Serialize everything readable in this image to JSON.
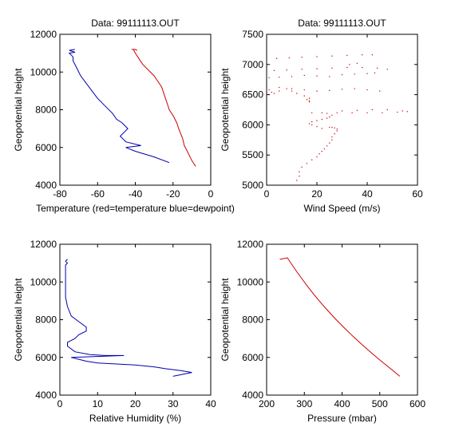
{
  "colors": {
    "temperature": "#cc0000",
    "dewpoint": "#0000aa",
    "axes": "#000000",
    "background": "#ffffff"
  },
  "chart_data": [
    {
      "type": "line",
      "title": "Data: 99111113.OUT",
      "xlabel": "Temperature (red=temperature blue=dewpoint)",
      "ylabel": "Geopotential height",
      "xlim": [
        -80,
        0
      ],
      "ylim": [
        4000,
        12000
      ],
      "xticks": [
        -80,
        -60,
        -40,
        -20,
        0
      ],
      "yticks": [
        4000,
        6000,
        8000,
        10000,
        12000
      ],
      "grid": false,
      "series": [
        {
          "color": "#cc0000",
          "style": "line",
          "x": [
            -8,
            -10,
            -12,
            -14,
            -15,
            -17,
            -18,
            -20,
            -22,
            -23,
            -24,
            -25,
            -26,
            -28,
            -30,
            -33,
            -36,
            -38,
            -40,
            -41,
            -42,
            -40,
            -39
          ],
          "y": [
            5000,
            5300,
            5700,
            6100,
            6500,
            7000,
            7300,
            7700,
            8000,
            8300,
            8600,
            8900,
            9200,
            9500,
            9800,
            10100,
            10400,
            10700,
            11000,
            11200,
            11200,
            11200,
            11150
          ]
        },
        {
          "color": "#0000aa",
          "style": "line",
          "x": [
            -22,
            -30,
            -40,
            -45,
            -37,
            -45,
            -48,
            -44,
            -47,
            -50,
            -52,
            -56,
            -60,
            -63,
            -66,
            -69,
            -71,
            -73,
            -73,
            -75,
            -72,
            -75,
            -72
          ],
          "y": [
            5200,
            5500,
            5800,
            6000,
            6100,
            6300,
            6600,
            7000,
            7300,
            7500,
            7800,
            8200,
            8600,
            9000,
            9400,
            9800,
            10200,
            10600,
            10800,
            11000,
            11050,
            11150,
            11200
          ]
        }
      ]
    },
    {
      "type": "scatter",
      "title": "Data: 99111113.OUT",
      "xlabel": "Wind Speed (m/s)",
      "ylabel": "Geopotential height",
      "xlim": [
        0,
        60
      ],
      "ylim": [
        5000,
        7500
      ],
      "xticks": [
        0,
        20,
        40,
        60
      ],
      "yticks": [
        5000,
        5500,
        6000,
        6500,
        7000,
        7500
      ],
      "grid": false,
      "series": [
        {
          "color": "#cc0000",
          "style": "points",
          "x": [
            12,
            12,
            13,
            13,
            14,
            16,
            18,
            20,
            21,
            22,
            23,
            24,
            25,
            26,
            26,
            27,
            28,
            28,
            27,
            26,
            25,
            22,
            20,
            18,
            17,
            18,
            20,
            22,
            24,
            25,
            26,
            24,
            30,
            36,
            42,
            48,
            54,
            56,
            52,
            46,
            40,
            34,
            28,
            22,
            18,
            17,
            16,
            17,
            17,
            15,
            12,
            10,
            8,
            5,
            3,
            2,
            1,
            5,
            10,
            15,
            20,
            25,
            30,
            35,
            40,
            45,
            1,
            5,
            10,
            15,
            20,
            25,
            30,
            35,
            40,
            43,
            3,
            8,
            14,
            20,
            26,
            32,
            38,
            44,
            48,
            4,
            9,
            14,
            20,
            26,
            32,
            38,
            42,
            33,
            36
          ],
          "y": [
            5000,
            5080,
            5150,
            5220,
            5300,
            5360,
            5420,
            5470,
            5520,
            5560,
            5600,
            5650,
            5700,
            5750,
            5800,
            5850,
            5900,
            5930,
            5950,
            5960,
            5960,
            5940,
            5970,
            6000,
            6020,
            6050,
            6070,
            6090,
            6110,
            6130,
            6160,
            6190,
            6230,
            6240,
            6250,
            6250,
            6230,
            6220,
            6210,
            6200,
            6200,
            6200,
            6200,
            6200,
            6200,
            6380,
            6420,
            6400,
            6440,
            6480,
            6520,
            6560,
            6600,
            6560,
            6520,
            6540,
            6580,
            6620,
            6600,
            6580,
            6560,
            6570,
            6590,
            6600,
            6580,
            6560,
            6780,
            6790,
            6800,
            6820,
            6810,
            6800,
            6830,
            6840,
            6850,
            6860,
            6900,
            6910,
            6920,
            6930,
            6940,
            6950,
            6950,
            6940,
            6920,
            7100,
            7110,
            7120,
            7130,
            7140,
            7150,
            7160,
            7160,
            7000,
            7020
          ]
        }
      ]
    },
    {
      "type": "line",
      "title": "",
      "xlabel": "Relative Humidity (%)",
      "ylabel": "Geopotential height",
      "xlim": [
        0,
        40
      ],
      "ylim": [
        4000,
        12000
      ],
      "xticks": [
        0,
        10,
        20,
        30,
        40
      ],
      "yticks": [
        4000,
        6000,
        8000,
        10000,
        12000
      ],
      "grid": false,
      "series": [
        {
          "color": "#0000aa",
          "style": "line",
          "x": [
            30,
            35,
            32,
            28,
            25,
            20,
            15,
            10,
            7,
            5,
            3,
            17,
            12,
            8,
            4,
            2,
            2,
            4,
            5,
            7,
            7,
            5,
            3,
            2,
            1.5,
            1.5,
            1.5,
            1.5,
            1.5,
            2,
            1.5,
            2
          ],
          "y": [
            5000,
            5200,
            5300,
            5400,
            5500,
            5600,
            5650,
            5700,
            5800,
            5900,
            6000,
            6100,
            6100,
            6150,
            6300,
            6600,
            6800,
            7000,
            7200,
            7400,
            7600,
            7900,
            8200,
            8700,
            9200,
            9800,
            10300,
            10700,
            10900,
            11000,
            11100,
            11200
          ]
        }
      ]
    },
    {
      "type": "line",
      "title": "",
      "xlabel": "Pressure (mbar)",
      "ylabel": "Geopotential height",
      "xlim": [
        200,
        600
      ],
      "ylim": [
        4000,
        12000
      ],
      "xticks": [
        200,
        300,
        400,
        500,
        600
      ],
      "yticks": [
        4000,
        6000,
        8000,
        10000,
        12000
      ],
      "grid": false,
      "series": [
        {
          "color": "#cc0000",
          "style": "line",
          "x": [
            553,
            530,
            505,
            480,
            455,
            430,
            405,
            380,
            355,
            330,
            305,
            280,
            255,
            235
          ],
          "y": [
            5000,
            5380,
            5780,
            6200,
            6640,
            7100,
            7580,
            8090,
            8640,
            9220,
            9860,
            10540,
            11280,
            11200
          ]
        }
      ]
    }
  ]
}
